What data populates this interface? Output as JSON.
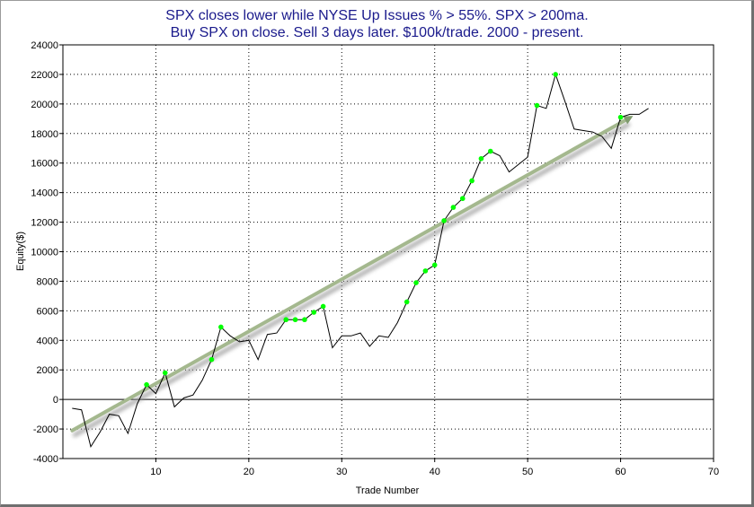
{
  "chart_data": {
    "type": "line",
    "title": [
      "SPX closes lower while NYSE Up Issues % > 55%. SPX > 200ma.",
      "Buy SPX on close. Sell 3 days later. $100k/trade. 2000 - present."
    ],
    "xlabel": "Trade Number",
    "ylabel": "Equity($)",
    "xlim": [
      0,
      70
    ],
    "ylim": [
      -4000,
      24000
    ],
    "xticks": [
      10,
      20,
      30,
      40,
      50,
      60,
      70
    ],
    "yticks": [
      -4000,
      -2000,
      0,
      2000,
      4000,
      6000,
      8000,
      10000,
      12000,
      14000,
      16000,
      18000,
      20000,
      22000,
      24000
    ],
    "grid": true,
    "series": [
      {
        "x": [
          1,
          2,
          3,
          4,
          5,
          6,
          7,
          8,
          9,
          10,
          11,
          12,
          13,
          14,
          15,
          16,
          17,
          18,
          19,
          20,
          21,
          22,
          23,
          24,
          25,
          26,
          27,
          28,
          29,
          30,
          31,
          32,
          33,
          34,
          35,
          36,
          37,
          38,
          39,
          40,
          41,
          42,
          43,
          44,
          45,
          46,
          47,
          48,
          49,
          50,
          51,
          52,
          53,
          54,
          55,
          56,
          57,
          58,
          59,
          60,
          61,
          62,
          63
        ],
        "y": [
          -600,
          -700,
          -3200,
          -2200,
          -1000,
          -1100,
          -2300,
          -300,
          1000,
          400,
          1800,
          -500,
          100,
          300,
          1300,
          2700,
          4900,
          4300,
          3900,
          4000,
          2700,
          4400,
          4500,
          5400,
          5400,
          5400,
          5900,
          6300,
          3500,
          4300,
          4300,
          4500,
          3600,
          4300,
          4200,
          5200,
          6600,
          7900,
          8700,
          9100,
          12100,
          13000,
          13600,
          14800,
          16300,
          16800,
          16500,
          15400,
          15900,
          16400,
          19900,
          19700,
          22000,
          20200,
          18300,
          18200,
          18100,
          17800,
          17000,
          19100,
          19300,
          19300,
          19700
        ],
        "color": "#000000"
      },
      {
        "x": [
          9,
          11,
          16,
          17,
          24,
          25,
          26,
          27,
          28,
          37,
          38,
          39,
          40,
          41,
          42,
          43,
          44,
          45,
          46,
          51,
          53,
          60
        ],
        "y": [
          1000,
          1800,
          2700,
          4900,
          5400,
          5400,
          5400,
          5900,
          6300,
          6600,
          7900,
          8700,
          9100,
          12100,
          13000,
          13600,
          14800,
          16300,
          16800,
          19900,
          22000,
          19100
        ],
        "type": "scatter",
        "color": "#00ff00"
      },
      {
        "x": [
          1,
          60.5
        ],
        "y": [
          -2100,
          18900
        ],
        "type": "trendline",
        "color": "#a4b88e"
      }
    ]
  }
}
